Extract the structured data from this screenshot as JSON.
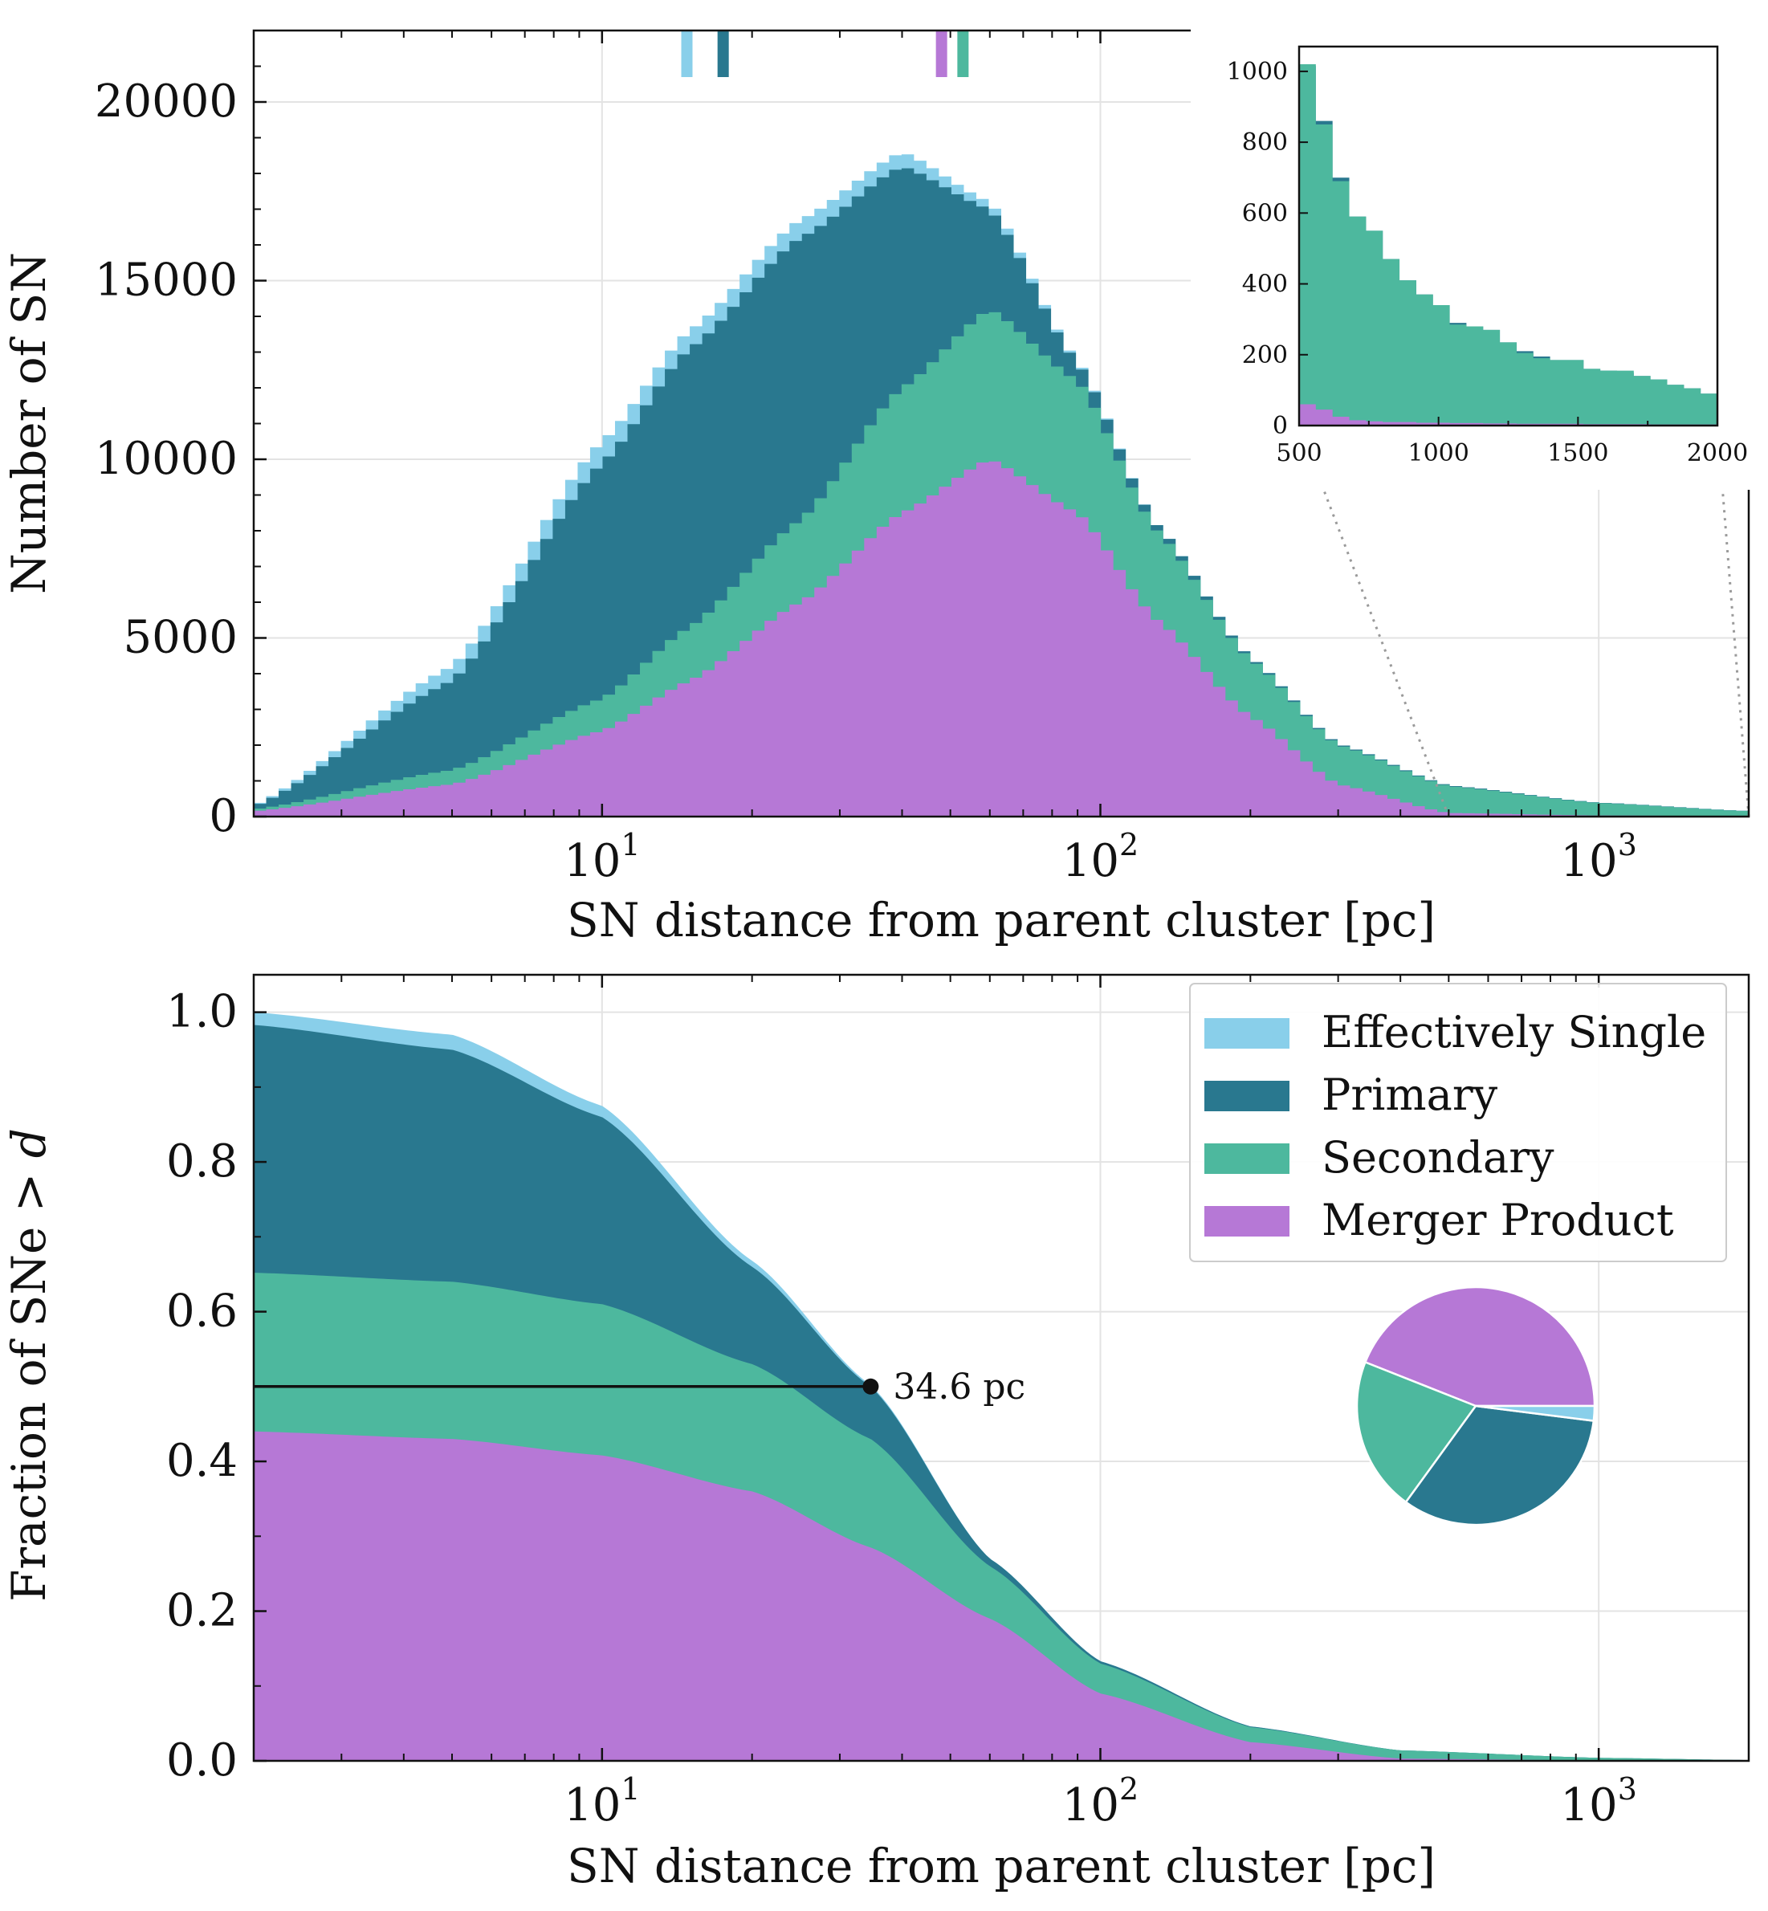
{
  "colors": {
    "single": "#89cfea",
    "primary": "#29788f",
    "secondary": "#4db89e",
    "merger": "#b678d6"
  },
  "chart_data": [
    {
      "type": "histogram",
      "xscale": "log",
      "xlim": [
        2,
        2000
      ],
      "ylim": [
        0,
        22000
      ],
      "xlabel": "SN distance from parent cluster [pc]",
      "ylabel": "Number of SN",
      "x_tick_labels": [
        {
          "value": 10,
          "base": "10",
          "exp": "1"
        },
        {
          "value": 100,
          "base": "10",
          "exp": "2"
        },
        {
          "value": 1000,
          "base": "10",
          "exp": "3"
        }
      ],
      "y_ticks": [
        0,
        5000,
        10000,
        15000,
        20000
      ],
      "y_tick_labels": [
        "0",
        "5000",
        "10000",
        "15000",
        "20000"
      ],
      "grid": true,
      "stack_order": [
        "merger",
        "secondary",
        "primary",
        "single"
      ],
      "profile_points": [
        {
          "x": 2,
          "merger": 150,
          "secondary": 200,
          "primary": 280,
          "single": 300
        },
        {
          "x": 5,
          "merger": 900,
          "secondary": 1300,
          "primary": 3800,
          "single": 4200
        },
        {
          "x": 10,
          "merger": 2400,
          "secondary": 3300,
          "primary": 9900,
          "single": 10500
        },
        {
          "x": 15,
          "merger": 3800,
          "secondary": 5300,
          "primary": 13100,
          "single": 13600
        },
        {
          "x": 25,
          "merger": 6000,
          "secondary": 8300,
          "primary": 16200,
          "single": 16700
        },
        {
          "x": 40,
          "merger": 8500,
          "secondary": 12000,
          "primary": 18200,
          "single": 18600
        },
        {
          "x": 60,
          "merger": 10000,
          "secondary": 14200,
          "primary": 17000,
          "single": 17200
        },
        {
          "x": 90,
          "merger": 8500,
          "secondary": 12200,
          "primary": 12700,
          "single": 12750
        },
        {
          "x": 130,
          "merger": 5500,
          "secondary": 8000,
          "primary": 8150,
          "single": 8150
        },
        {
          "x": 200,
          "merger": 2800,
          "secondary": 4400,
          "primary": 4450,
          "single": 4450
        },
        {
          "x": 300,
          "merger": 900,
          "secondary": 2000,
          "primary": 2030,
          "single": 2030
        },
        {
          "x": 500,
          "merger": 100,
          "secondary": 850,
          "primary": 870,
          "single": 870
        },
        {
          "x": 1000,
          "merger": 30,
          "secondary": 380,
          "primary": 390,
          "single": 390
        },
        {
          "x": 2000,
          "merger": 15,
          "secondary": 150,
          "primary": 155,
          "single": 155
        }
      ],
      "median_markers": [
        {
          "group": "single",
          "x": 14.8
        },
        {
          "group": "primary",
          "x": 17.5
        },
        {
          "group": "merger",
          "x": 48
        },
        {
          "group": "secondary",
          "x": 53
        }
      ],
      "inset": {
        "type": "histogram",
        "xlim": [
          500,
          2000
        ],
        "ylim": [
          0,
          1070
        ],
        "x_ticks": [
          500,
          1000,
          1500,
          2000
        ],
        "x_tick_labels": [
          "500",
          "1000",
          "1500",
          "2000"
        ],
        "y_ticks": [
          0,
          200,
          400,
          600,
          800,
          1000
        ],
        "y_tick_labels": [
          "0",
          "200",
          "400",
          "600",
          "800",
          "1000"
        ],
        "bin_edges": [
          500,
          560,
          620,
          680,
          740,
          800,
          860,
          920,
          980,
          1040,
          1100,
          1160,
          1220,
          1280,
          1340,
          1400,
          1460,
          1520,
          1580,
          1640,
          1700,
          1760,
          1820,
          1880,
          1940,
          2000
        ],
        "secondary_top": [
          1020,
          850,
          690,
          590,
          550,
          470,
          410,
          370,
          340,
          285,
          280,
          270,
          235,
          205,
          190,
          185,
          185,
          160,
          155,
          155,
          140,
          130,
          115,
          105,
          90
        ],
        "primary_top": [
          1015,
          860,
          700,
          590,
          550,
          470,
          410,
          370,
          340,
          290,
          280,
          270,
          235,
          210,
          195,
          185,
          185,
          160,
          155,
          150,
          140,
          130,
          115,
          105,
          90
        ],
        "merger_top": [
          60,
          45,
          25,
          15,
          12,
          10,
          10,
          8,
          8,
          7,
          7,
          6,
          6,
          5,
          5,
          5,
          5,
          4,
          4,
          4,
          4,
          3,
          3,
          3,
          3
        ]
      }
    },
    {
      "type": "area",
      "xscale": "log",
      "xlim": [
        2,
        2000
      ],
      "ylim": [
        0,
        1.05
      ],
      "xlabel": "SN distance from parent cluster [pc]",
      "ylabel_prefix": "Fraction of SNe > ",
      "ylabel_var": "d",
      "x_tick_labels": [
        {
          "value": 10,
          "base": "10",
          "exp": "1"
        },
        {
          "value": 100,
          "base": "10",
          "exp": "2"
        },
        {
          "value": 1000,
          "base": "10",
          "exp": "3"
        }
      ],
      "y_ticks": [
        0,
        0.2,
        0.4,
        0.6,
        0.8,
        1.0
      ],
      "y_tick_labels": [
        "0.0",
        "0.2",
        "0.4",
        "0.6",
        "0.8",
        "1.0"
      ],
      "grid": true,
      "stack_order": [
        "merger",
        "secondary",
        "primary",
        "single"
      ],
      "profile_points": [
        {
          "x": 2,
          "merger": 0.44,
          "secondary": 0.652,
          "primary": 0.983,
          "single": 1.0
        },
        {
          "x": 5,
          "merger": 0.43,
          "secondary": 0.64,
          "primary": 0.95,
          "single": 0.97
        },
        {
          "x": 10,
          "merger": 0.408,
          "secondary": 0.61,
          "primary": 0.86,
          "single": 0.875
        },
        {
          "x": 20,
          "merger": 0.36,
          "secondary": 0.53,
          "primary": 0.66,
          "single": 0.668
        },
        {
          "x": 34.6,
          "merger": 0.285,
          "secondary": 0.43,
          "primary": 0.5,
          "single": 0.502
        },
        {
          "x": 60,
          "merger": 0.19,
          "secondary": 0.26,
          "primary": 0.27,
          "single": 0.27
        },
        {
          "x": 100,
          "merger": 0.09,
          "secondary": 0.13,
          "primary": 0.133,
          "single": 0.133
        },
        {
          "x": 200,
          "merger": 0.025,
          "secondary": 0.045,
          "primary": 0.046,
          "single": 0.046
        },
        {
          "x": 400,
          "merger": 0.003,
          "secondary": 0.014,
          "primary": 0.014,
          "single": 0.014
        },
        {
          "x": 1000,
          "merger": 0.0005,
          "secondary": 0.004,
          "primary": 0.004,
          "single": 0.004
        },
        {
          "x": 2000,
          "merger": 0,
          "secondary": 0.001,
          "primary": 0.001,
          "single": 0.001
        }
      ],
      "median": {
        "x": 34.6,
        "y": 0.5,
        "label": "34.6 pc"
      },
      "legend": {
        "placement": "top-right",
        "entries": [
          {
            "key": "single",
            "label": "Effectively Single"
          },
          {
            "key": "primary",
            "label": "Primary"
          },
          {
            "key": "secondary",
            "label": "Secondary"
          },
          {
            "key": "merger",
            "label": "Merger Product"
          }
        ]
      },
      "pie": {
        "slices": [
          {
            "key": "merger",
            "value": 0.44
          },
          {
            "key": "secondary",
            "value": 0.21
          },
          {
            "key": "primary",
            "value": 0.33
          },
          {
            "key": "single",
            "value": 0.02
          }
        ]
      }
    }
  ]
}
